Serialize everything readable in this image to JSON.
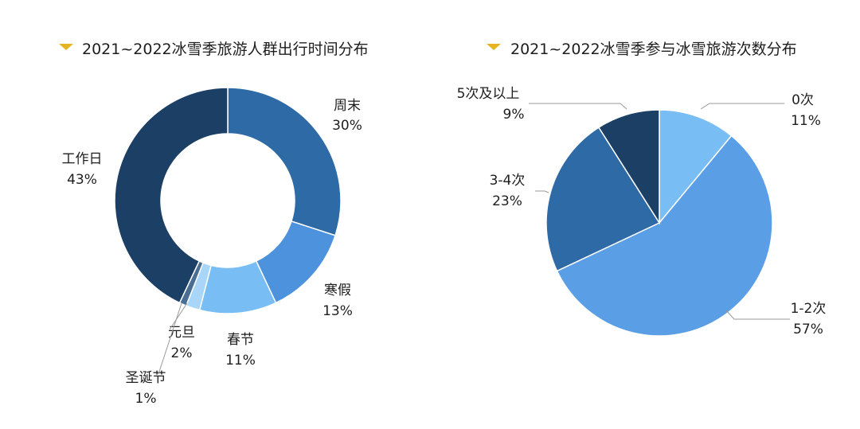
{
  "colors": {
    "background": "#ffffff",
    "text": "#1e1e1e",
    "title_marker": "#e6b421",
    "leader_line": "#9a9a9a",
    "palette": {
      "navy": "#1c3f66",
      "steel_blue": "#2e6aa5",
      "medium_blue": "#4d92dc",
      "light_blue": "#5a9ee6",
      "pale_blue": "#78bdf4",
      "very_pale_blue": "#a9d6f8",
      "slate": "#4a6d93"
    }
  },
  "chart_data": [
    {
      "type": "pie",
      "variant": "donut",
      "title": "2021~2022冰雪季旅游人群出行时间分布",
      "start": "12 o'clock",
      "direction": "clockwise",
      "slices": [
        {
          "label": "周末",
          "value": 30,
          "value_label": "30%",
          "color": "#2e6aa5"
        },
        {
          "label": "寒假",
          "value": 13,
          "value_label": "13%",
          "color": "#4d92dc"
        },
        {
          "label": "春节",
          "value": 11,
          "value_label": "11%",
          "color": "#78bdf4"
        },
        {
          "label": "元旦",
          "value": 2,
          "value_label": "2%",
          "color": "#a9d6f8"
        },
        {
          "label": "圣诞节",
          "value": 1,
          "value_label": "1%",
          "color": "#4a6d93"
        },
        {
          "label": "工作日",
          "value": 43,
          "value_label": "43%",
          "color": "#1c3f66"
        }
      ]
    },
    {
      "type": "pie",
      "title": "2021~2022冰雪季参与冰雪旅游次数分布",
      "start": "12 o'clock",
      "direction": "clockwise",
      "slices": [
        {
          "label": "0次",
          "value": 11,
          "value_label": "11%",
          "color": "#78bdf4"
        },
        {
          "label": "1-2次",
          "value": 57,
          "value_label": "57%",
          "color": "#5a9ee6"
        },
        {
          "label": "3-4次",
          "value": 23,
          "value_label": "23%",
          "color": "#2e6aa5"
        },
        {
          "label": "5次及以上",
          "value": 9,
          "value_label": "9%",
          "color": "#1c3f66"
        }
      ]
    }
  ]
}
